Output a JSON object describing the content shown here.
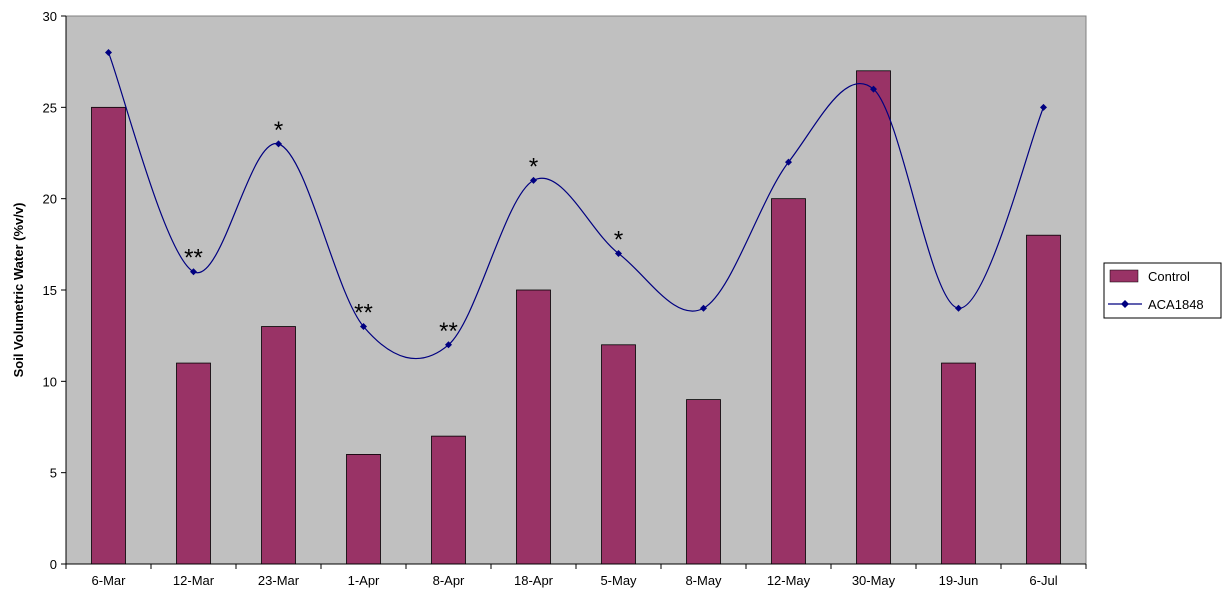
{
  "chart_data": {
    "type": "bar",
    "categories": [
      "6-Mar",
      "12-Mar",
      "23-Mar",
      "1-Apr",
      "8-Apr",
      "18-Apr",
      "5-May",
      "8-May",
      "12-May",
      "30-May",
      "19-Jun",
      "6-Jul"
    ],
    "series": [
      {
        "name": "Control",
        "type": "bar",
        "color": "#993366",
        "values": [
          25,
          11,
          13,
          6,
          7,
          15,
          12,
          9,
          20,
          27,
          11,
          18
        ]
      },
      {
        "name": "ACA1848",
        "type": "line",
        "color": "#000080",
        "values": [
          28,
          16,
          23,
          13,
          12,
          21,
          17,
          14,
          22,
          26,
          14,
          25
        ]
      }
    ],
    "annotations": [
      "",
      "**",
      "*",
      "**",
      "**",
      "*",
      "*",
      "",
      "",
      "",
      "",
      ""
    ],
    "ylabel": "Soil Volumetric Water (%v/v)",
    "ylim": [
      0,
      30
    ],
    "yticks": [
      0,
      5,
      10,
      15,
      20,
      25,
      30
    ],
    "plot_background": "#c0c0c0",
    "legend_position": "right"
  }
}
